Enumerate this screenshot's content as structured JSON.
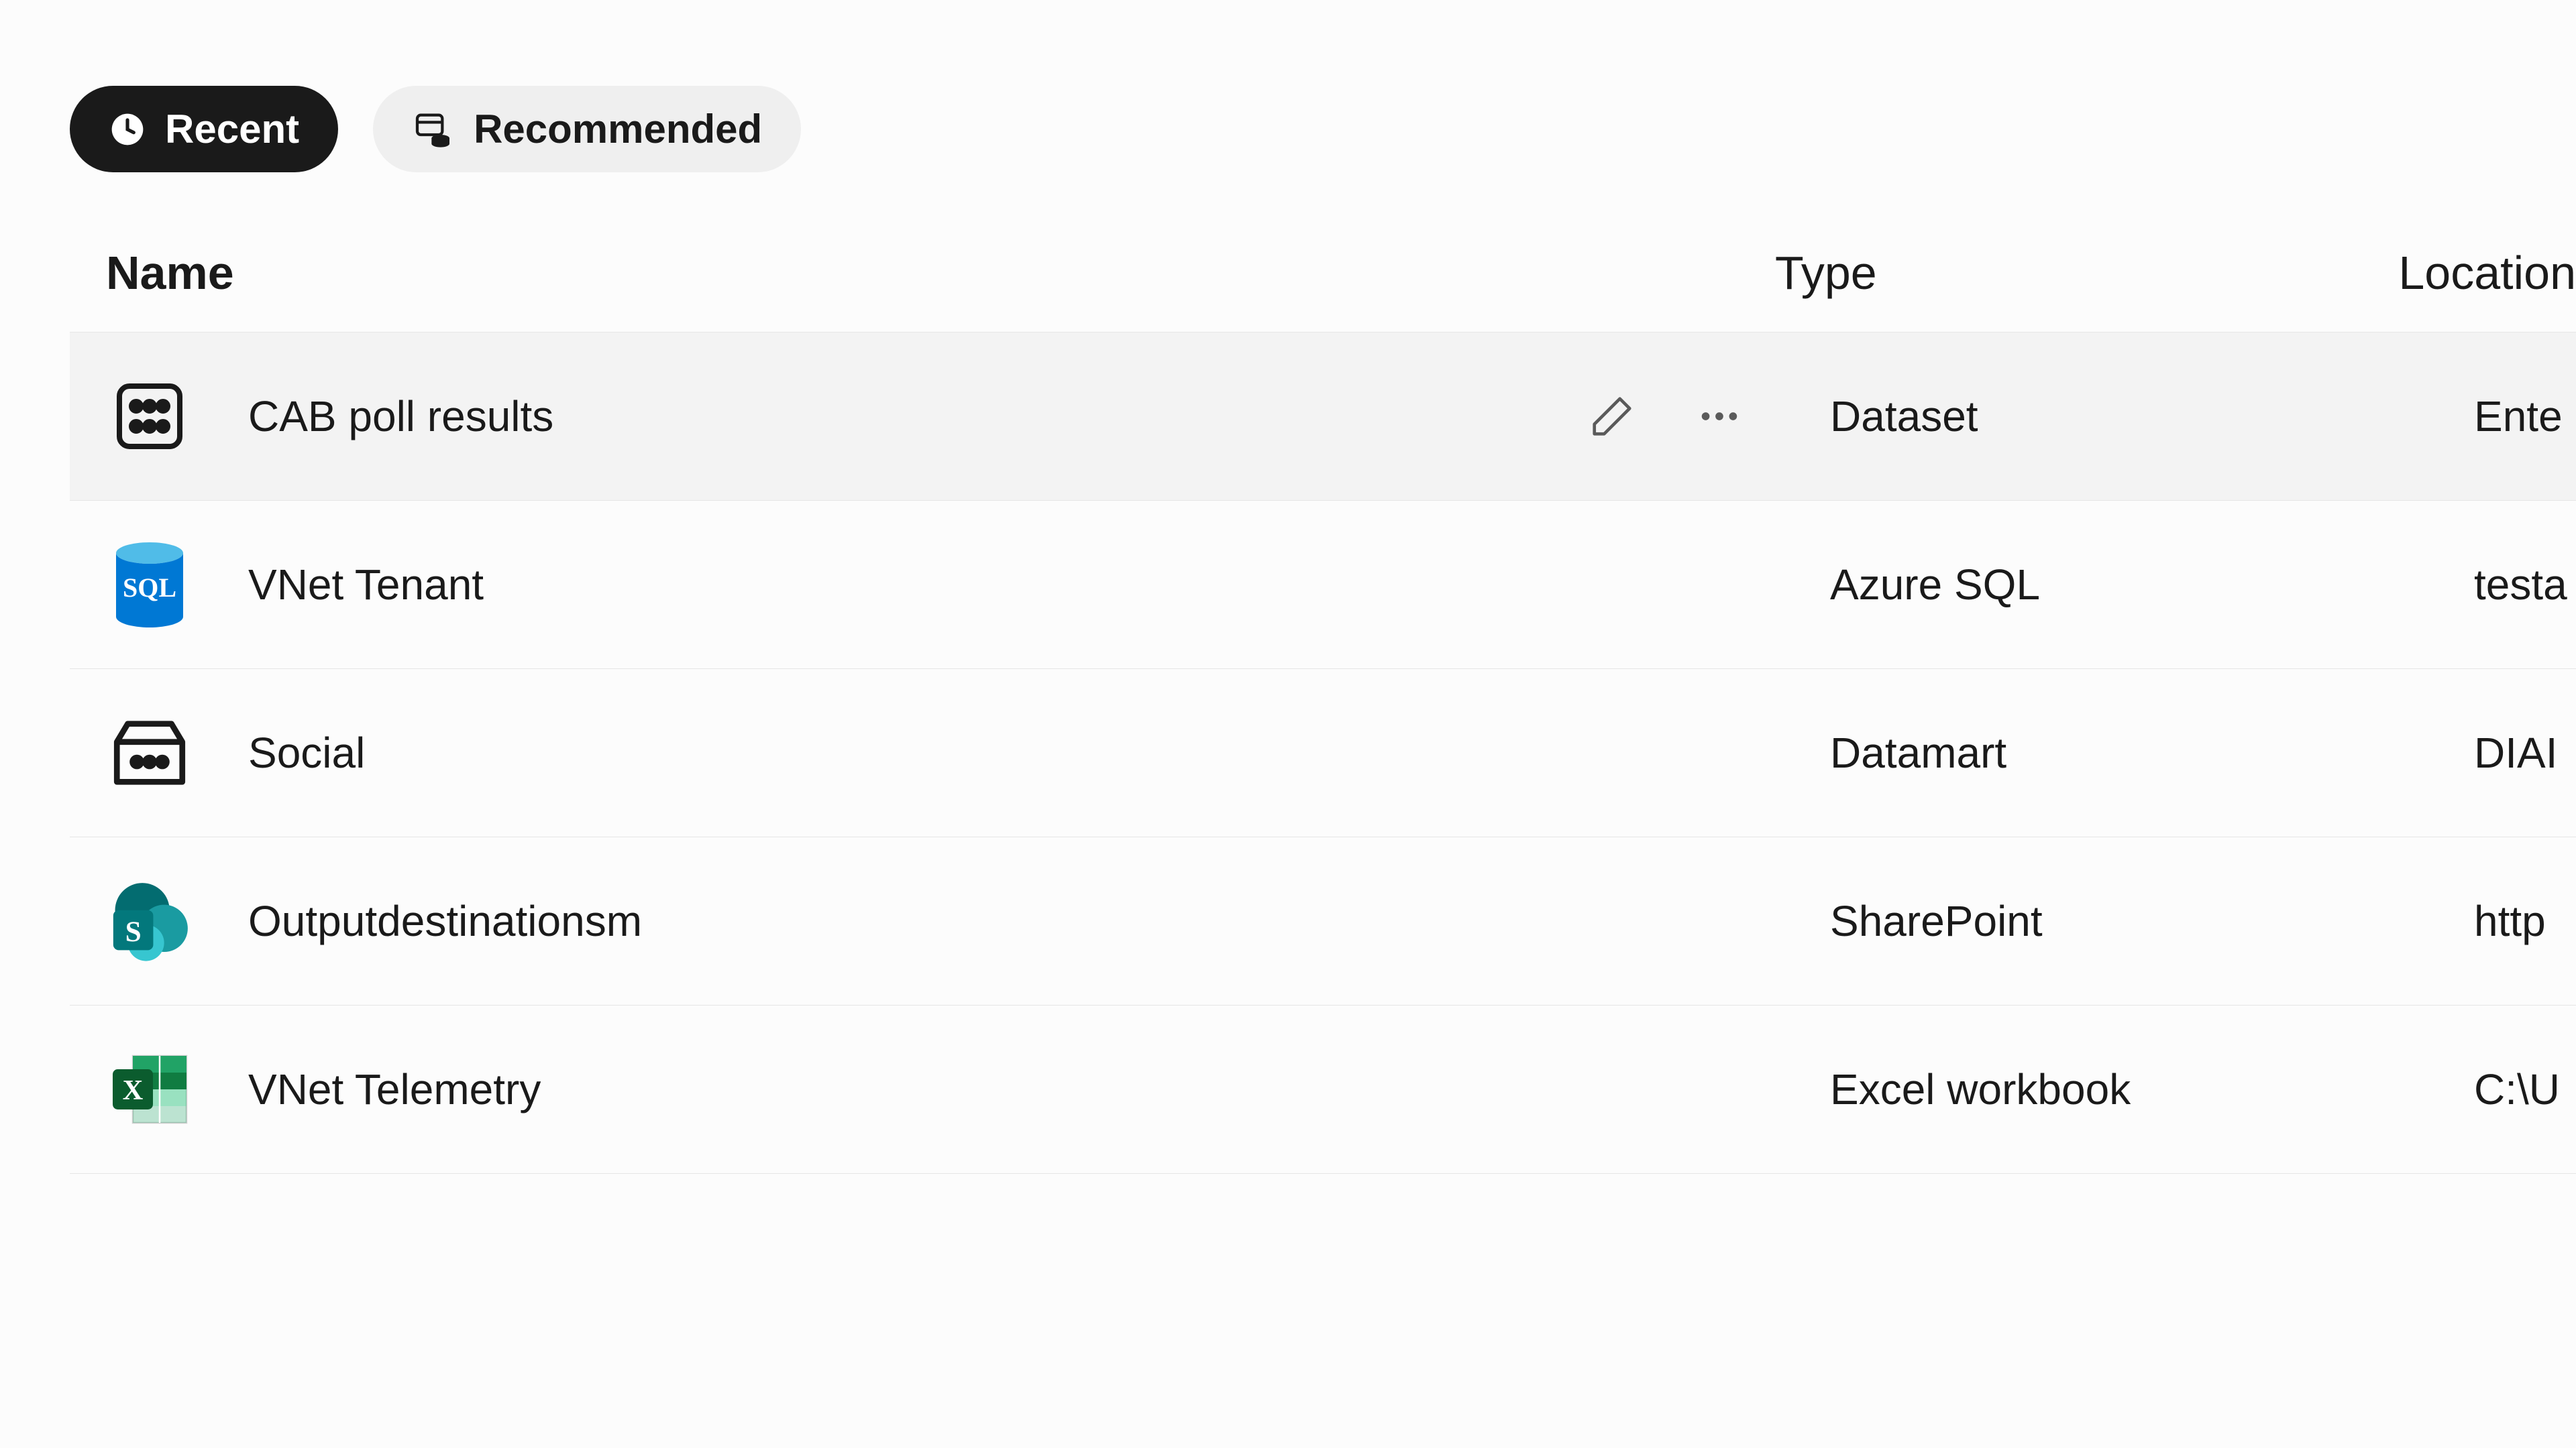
{
  "tabs": {
    "recent": "Recent",
    "recommended": "Recommended"
  },
  "columns": {
    "name": "Name",
    "type": "Type",
    "location": "Location"
  },
  "rows": [
    {
      "name": "CAB poll results",
      "type": "Dataset",
      "location": "Ente",
      "icon": "dataset",
      "selected": true
    },
    {
      "name": "VNet Tenant",
      "type": "Azure SQL",
      "location": "testa",
      "icon": "sql",
      "selected": false
    },
    {
      "name": "Social",
      "type": "Datamart",
      "location": "DIAI",
      "icon": "datamart",
      "selected": false
    },
    {
      "name": "Outputdestinationsm",
      "type": "SharePoint",
      "location": "http",
      "icon": "sharepoint",
      "selected": false
    },
    {
      "name": "VNet Telemetry",
      "type": "Excel workbook",
      "location": "C:\\U",
      "icon": "excel",
      "selected": false
    }
  ],
  "colors": {
    "tab_active_bg": "#1a1a1a",
    "tab_active_fg": "#ffffff",
    "tab_inactive_bg": "#efefef",
    "tab_inactive_fg": "#1a1a1a",
    "row_selected_bg": "#f3f3f3",
    "border": "#e6e6e6",
    "text": "#1a1a1a",
    "action_icon": "#5a5a5a",
    "sql_blue": "#0078d4",
    "sharepoint_teal": "#036c70",
    "sharepoint_teal_light": "#1a9ba1",
    "excel_green": "#107c41",
    "excel_green_dark": "#0b5c2e"
  }
}
